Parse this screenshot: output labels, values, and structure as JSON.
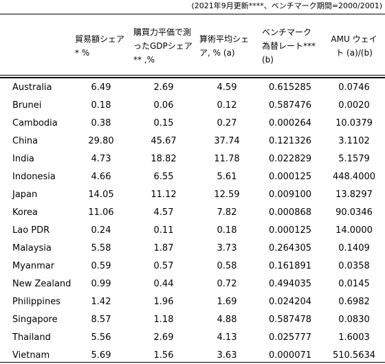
{
  "note": "(2021年9月更新****、ベンチマーク期間=2000/2001)",
  "headers": {
    "trade_share": "貿易額シェア* %",
    "gdp_share": "購買力平価で測ったGDPシェア ** ,%",
    "arith_share": "算術平均シェア, % (a)",
    "benchmark_rate": "ベンチマーク為替レート*** (b)",
    "amu_weight": "AMU ウェイト (a)/(b)"
  },
  "rows": [
    {
      "country": "Australia",
      "trade": "6.49",
      "gdp": "2.69",
      "arith": "4.59",
      "rate": "0.615285",
      "weight": "0.0746"
    },
    {
      "country": "Brunei",
      "trade": "0.18",
      "gdp": "0.06",
      "arith": "0.12",
      "rate": "0.587476",
      "weight": "0.0020"
    },
    {
      "country": "Cambodia",
      "trade": "0.38",
      "gdp": "0.15",
      "arith": "0.27",
      "rate": "0.000264",
      "weight": "10.0379"
    },
    {
      "country": "China",
      "trade": "29.80",
      "gdp": "45.67",
      "arith": "37.74",
      "rate": "0.121326",
      "weight": "3.1102"
    },
    {
      "country": "India",
      "trade": "4.73",
      "gdp": "18.82",
      "arith": "11.78",
      "rate": "0.022829",
      "weight": "5.1579"
    },
    {
      "country": "Indonesia",
      "trade": "4.66",
      "gdp": "6.55",
      "arith": "5.61",
      "rate": "0.000125",
      "weight": "448.4000"
    },
    {
      "country": "Japan",
      "trade": "14.05",
      "gdp": "11.12",
      "arith": "12.59",
      "rate": "0.009100",
      "weight": "13.8297"
    },
    {
      "country": "Korea",
      "trade": "11.06",
      "gdp": "4.57",
      "arith": "7.82",
      "rate": "0.000868",
      "weight": "90.0346"
    },
    {
      "country": "Lao PDR",
      "trade": "0.24",
      "gdp": "0.11",
      "arith": "0.18",
      "rate": "0.000125",
      "weight": "14.0000"
    },
    {
      "country": "Malaysia",
      "trade": "5.58",
      "gdp": "1.87",
      "arith": "3.73",
      "rate": "0.264305",
      "weight": "0.1409"
    },
    {
      "country": "Myanmar",
      "trade": "0.59",
      "gdp": "0.57",
      "arith": "0.58",
      "rate": "0.161891",
      "weight": "0.0358"
    },
    {
      "country": "New Zealand",
      "trade": "0.99",
      "gdp": "0.44",
      "arith": "0.72",
      "rate": "0.494035",
      "weight": "0.0145"
    },
    {
      "country": "Philippines",
      "trade": "1.42",
      "gdp": "1.96",
      "arith": "1.69",
      "rate": "0.024204",
      "weight": "0.6982"
    },
    {
      "country": "Singapore",
      "trade": "8.57",
      "gdp": "1.18",
      "arith": "4.88",
      "rate": "0.587478",
      "weight": "0.0830"
    },
    {
      "country": "Thailand",
      "trade": "5.56",
      "gdp": "2.69",
      "arith": "4.13",
      "rate": "0.025777",
      "weight": "1.6003"
    },
    {
      "country": "Vietnam",
      "trade": "5.69",
      "gdp": "1.56",
      "arith": "3.63",
      "rate": "0.000071",
      "weight": "510.5634"
    }
  ]
}
